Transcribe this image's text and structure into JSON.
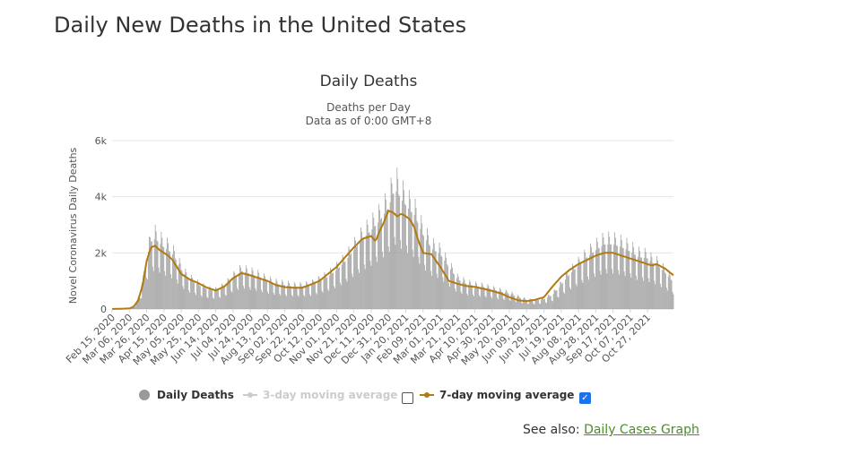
{
  "page": {
    "title": "Daily New Deaths in the United States",
    "see_also_label": "See also:",
    "see_also_link": "Daily Cases Graph"
  },
  "legend": {
    "daily": "Daily Deaths",
    "ma3": "3-day moving average",
    "ma7": "7-day moving average",
    "ma3_checked": false,
    "ma7_checked": true,
    "checkmark": "✓"
  },
  "colors": {
    "bars": "#999999",
    "ma7": "#b27a12",
    "ma3_disabled": "#cccccc",
    "grid": "#e6e6e6",
    "link": "#4c8c2b",
    "checkbox": "#1a73e8"
  },
  "chart_data": {
    "type": "bar",
    "title": "Daily Deaths",
    "subtitle1": "Deaths per Day",
    "subtitle2": "Data as of 0:00 GMT+8",
    "xlabel": "",
    "ylabel": "Novel Coronavirus Daily Deaths",
    "ylim": [
      0,
      6000
    ],
    "yticks": [
      0,
      2000,
      4000,
      6000
    ],
    "ytick_labels": [
      "0",
      "2k",
      "4k",
      "6k"
    ],
    "grid": true,
    "legend_position": "bottom",
    "categories": [
      "Feb 15, 2020",
      "Mar 06, 2020",
      "Mar 26, 2020",
      "Apr 15, 2020",
      "May 05, 2020",
      "May 25, 2020",
      "Jun 14, 2020",
      "Jul 04, 2020",
      "Jul 24, 2020",
      "Aug 13, 2020",
      "Sep 02, 2020",
      "Sep 22, 2020",
      "Oct 12, 2020",
      "Nov 01, 2020",
      "Nov 21, 2020",
      "Dec 11, 2020",
      "Dec 31, 2020",
      "Jan 20, 2021",
      "Feb 09, 2021",
      "Mar 01, 2021",
      "Mar 21, 2021",
      "Apr 10, 2021",
      "Apr 30, 2021",
      "May 20, 2021",
      "Jun 09, 2021",
      "Jun 29, 2021",
      "Jul 19, 2021",
      "Aug 08, 2021",
      "Aug 28, 2021",
      "Sep 17, 2021",
      "Oct 07, 2021",
      "Oct 27, 2021"
    ],
    "series": [
      {
        "name": "Daily Deaths",
        "kind": "bar",
        "x": [
          0,
          10,
          20,
          25,
          30,
          35,
          40,
          45,
          50,
          55,
          60,
          65,
          70,
          75,
          80,
          85,
          90,
          95,
          100,
          110,
          120,
          130,
          140,
          150,
          160,
          170,
          180,
          190,
          200,
          210,
          220,
          230,
          240,
          250,
          260,
          270,
          280,
          290,
          300,
          310,
          315,
          320,
          325,
          330,
          335,
          340,
          345,
          350,
          355,
          360,
          370,
          380,
          390,
          400,
          410,
          420,
          430,
          440,
          450,
          460,
          470,
          480,
          490,
          500,
          510,
          520,
          530,
          540,
          550,
          560,
          570,
          580,
          590,
          600,
          610,
          620,
          625,
          630,
          640,
          650
        ],
        "values": [
          0,
          0,
          20,
          80,
          300,
          800,
          1800,
          2400,
          2500,
          2350,
          2200,
          2100,
          1950,
          1700,
          1400,
          1200,
          1050,
          950,
          850,
          700,
          650,
          800,
          1100,
          1350,
          1250,
          1150,
          1000,
          900,
          850,
          800,
          800,
          850,
          1000,
          1150,
          1400,
          1700,
          2100,
          2500,
          2800,
          3150,
          3400,
          3600,
          4100,
          4200,
          3900,
          3700,
          3500,
          3350,
          3000,
          2650,
          2150,
          1950,
          1500,
          1050,
          900,
          820,
          780,
          700,
          620,
          550,
          420,
          320,
          300,
          350,
          500,
          850,
          1250,
          1550,
          1850,
          2100,
          2300,
          2300,
          2200,
          2050,
          1850,
          1800,
          1650,
          1600,
          1300,
          950
        ]
      },
      {
        "name": "7-day moving average",
        "kind": "line",
        "x": [
          0,
          20,
          25,
          30,
          35,
          40,
          45,
          50,
          55,
          60,
          65,
          70,
          75,
          80,
          90,
          100,
          110,
          120,
          130,
          140,
          150,
          160,
          170,
          180,
          190,
          200,
          210,
          220,
          230,
          240,
          250,
          260,
          270,
          280,
          290,
          300,
          305,
          310,
          315,
          320,
          325,
          330,
          335,
          340,
          345,
          350,
          355,
          360,
          370,
          380,
          390,
          400,
          410,
          420,
          430,
          440,
          450,
          460,
          470,
          480,
          490,
          500,
          510,
          520,
          530,
          540,
          550,
          560,
          570,
          580,
          590,
          600,
          610,
          620,
          625,
          630,
          640,
          650
        ],
        "values": [
          0,
          20,
          80,
          300,
          800,
          1700,
          2200,
          2250,
          2100,
          2000,
          1900,
          1750,
          1500,
          1250,
          1050,
          920,
          760,
          660,
          800,
          1100,
          1280,
          1200,
          1100,
          1000,
          850,
          780,
          760,
          760,
          870,
          1000,
          1250,
          1500,
          1850,
          2200,
          2500,
          2600,
          2400,
          2800,
          3100,
          3500,
          3450,
          3300,
          3400,
          3300,
          3200,
          2900,
          2400,
          2000,
          1950,
          1500,
          1000,
          900,
          820,
          790,
          720,
          640,
          560,
          420,
          310,
          280,
          330,
          420,
          800,
          1150,
          1400,
          1600,
          1750,
          1900,
          2000,
          2000,
          1900,
          1800,
          1700,
          1600,
          1550,
          1600,
          1450,
          1200
        ]
      }
    ]
  }
}
